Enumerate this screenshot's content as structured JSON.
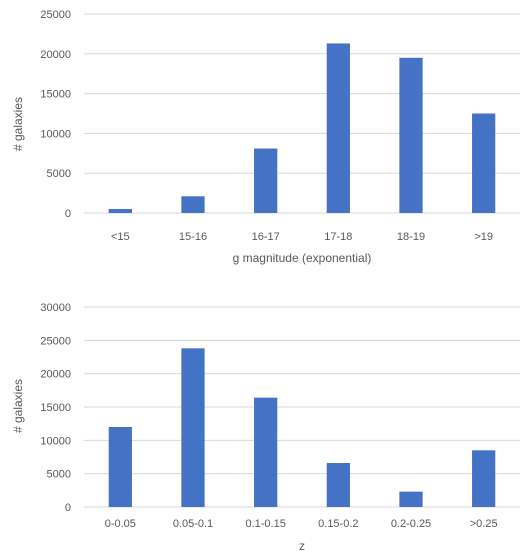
{
  "chart_data": [
    {
      "type": "bar",
      "title": "",
      "xlabel": "g magnitude (exponential)",
      "ylabel": "# galaxies",
      "ylim": [
        0,
        25000
      ],
      "yticks": [
        0,
        5000,
        10000,
        15000,
        20000,
        25000
      ],
      "grid": true,
      "categories": [
        "<15",
        "15-16",
        "16-17",
        "17-18",
        "18-19",
        ">19"
      ],
      "values": [
        500,
        2100,
        8100,
        21300,
        19500,
        12500
      ],
      "color": "#4472c4"
    },
    {
      "type": "bar",
      "title": "",
      "xlabel": "z",
      "ylabel": "# galaxies",
      "ylim": [
        0,
        30000
      ],
      "yticks": [
        0,
        5000,
        10000,
        15000,
        20000,
        25000,
        30000
      ],
      "grid": true,
      "categories": [
        "0-0.05",
        "0.05-0.1",
        "0.1-0.15",
        "0.15-0.2",
        "0.2-0.25",
        ">0.25"
      ],
      "values": [
        12000,
        23800,
        16400,
        6600,
        2300,
        8500
      ],
      "color": "#4472c4"
    }
  ]
}
